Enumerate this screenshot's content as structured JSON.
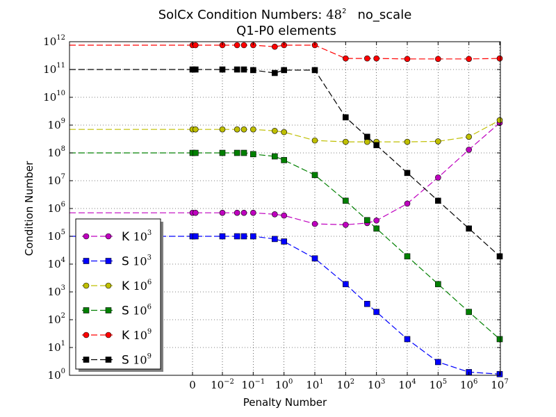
{
  "chart_data": {
    "type": "line",
    "title_prefix": "SolCx Condition Numbers: ",
    "title_math_base": "48",
    "title_math_exp": "2",
    "title_suffix": "no_scale",
    "subtitle": "Q1-P0 elements",
    "xlabel": "Penalty Number",
    "ylabel": "Condition Number",
    "x_scale": "symlog",
    "y_scale": "log",
    "ylim": [
      1,
      1000000000000
    ],
    "grid": true,
    "legend_placement": "lower-left",
    "x_ticks": [
      {
        "base": "0",
        "exp": ""
      },
      {
        "base": "10",
        "exp": "−2"
      },
      {
        "base": "10",
        "exp": "−1"
      },
      {
        "base": "10",
        "exp": "0"
      },
      {
        "base": "10",
        "exp": "1"
      },
      {
        "base": "10",
        "exp": "2"
      },
      {
        "base": "10",
        "exp": "3"
      },
      {
        "base": "10",
        "exp": "4"
      },
      {
        "base": "10",
        "exp": "5"
      },
      {
        "base": "10",
        "exp": "6"
      },
      {
        "base": "10",
        "exp": "7"
      }
    ],
    "y_ticks": [
      {
        "base": "10",
        "exp": "0"
      },
      {
        "base": "10",
        "exp": "1"
      },
      {
        "base": "10",
        "exp": "2"
      },
      {
        "base": "10",
        "exp": "3"
      },
      {
        "base": "10",
        "exp": "4"
      },
      {
        "base": "10",
        "exp": "5"
      },
      {
        "base": "10",
        "exp": "6"
      },
      {
        "base": "10",
        "exp": "7"
      },
      {
        "base": "10",
        "exp": "8"
      },
      {
        "base": "10",
        "exp": "9"
      },
      {
        "base": "10",
        "exp": "10"
      },
      {
        "base": "10",
        "exp": "11"
      },
      {
        "base": "10",
        "exp": "12"
      }
    ],
    "x": [
      0,
      0.001,
      0.01,
      0.03,
      0.05,
      0.1,
      0.5,
      1,
      10,
      100,
      500,
      1000,
      10000,
      100000,
      1000000,
      10000000
    ],
    "series": [
      {
        "name_letter": "K",
        "name_exp": "3",
        "color": "#bf00bf",
        "marker": "circle",
        "values": [
          700000,
          700000,
          700000,
          700000,
          700000,
          700000,
          620000,
          560000,
          280000,
          260000,
          300000,
          370000,
          1500000,
          13000000,
          130000000,
          1200000000
        ]
      },
      {
        "name_letter": "S",
        "name_exp": "3",
        "color": "#0000ff",
        "marker": "square",
        "values": [
          100000,
          100000,
          100000,
          100000,
          100000,
          100000,
          80000,
          65000,
          16000,
          1900,
          370,
          190,
          20,
          3,
          1.3,
          1.1
        ]
      },
      {
        "name_letter": "K",
        "name_exp": "6",
        "color": "#bfbf00",
        "marker": "circle",
        "values": [
          700000000,
          700000000,
          700000000,
          700000000,
          700000000,
          700000000,
          620000000,
          560000000,
          280000000,
          250000000,
          250000000,
          250000000,
          250000000,
          260000000,
          380000000,
          1500000000
        ]
      },
      {
        "name_letter": "S",
        "name_exp": "6",
        "color": "#008000",
        "marker": "square",
        "values": [
          100000000,
          100000000,
          100000000,
          100000000,
          100000000,
          90000000,
          75000000,
          55000000,
          16000000,
          1900000,
          380000,
          190000,
          19000,
          1900,
          190,
          20
        ]
      },
      {
        "name_letter": "K",
        "name_exp": "9",
        "color": "#ff0000",
        "marker": "circle",
        "values": [
          750000000000,
          750000000000,
          750000000000,
          750000000000,
          750000000000,
          750000000000,
          660000000000,
          750000000000,
          750000000000,
          250000000000,
          250000000000,
          250000000000,
          240000000000,
          240000000000,
          240000000000,
          250000000000
        ]
      },
      {
        "name_letter": "S",
        "name_exp": "9",
        "color": "#000000",
        "marker": "square",
        "values": [
          100000000000,
          100000000000,
          100000000000,
          100000000000,
          100000000000,
          95000000000,
          75000000000,
          95000000000,
          95000000000,
          1900000000,
          380000000,
          190000000,
          19000000,
          1900000,
          190000,
          19000
        ]
      }
    ]
  }
}
